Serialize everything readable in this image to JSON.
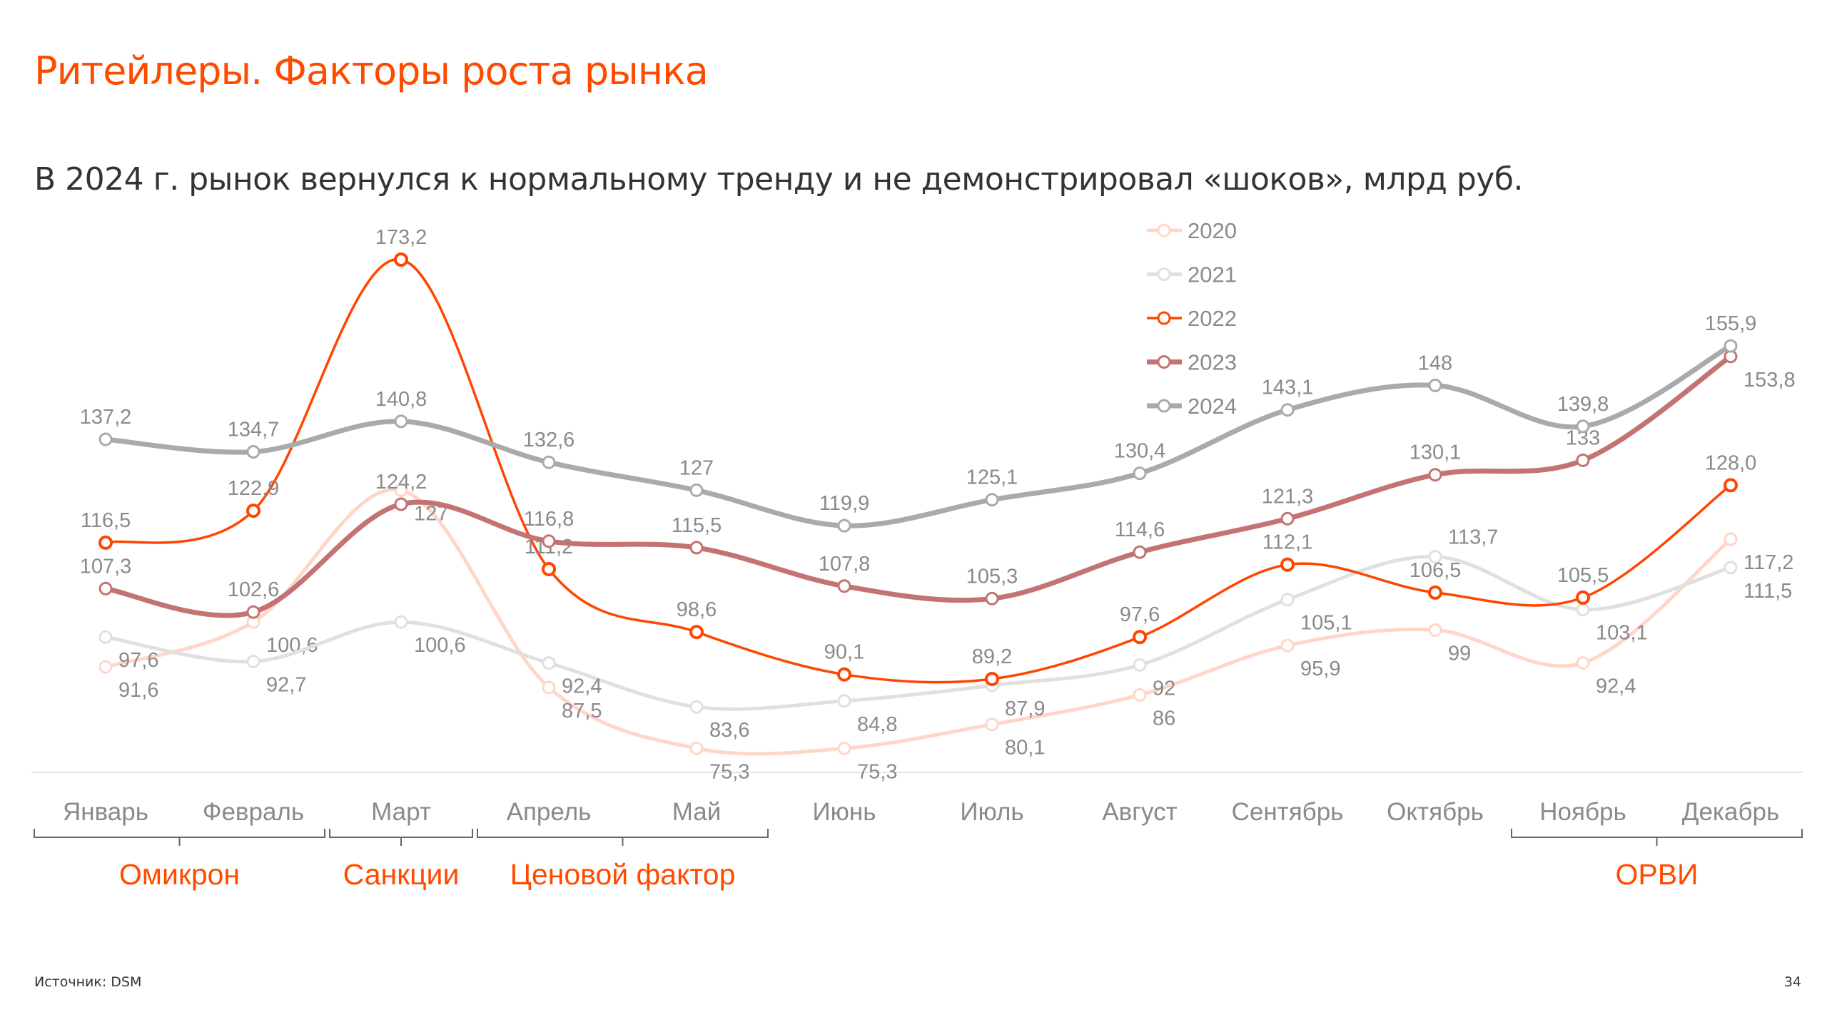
{
  "title": "Ритейлеры. Факторы роста рынка",
  "subtitle": "В 2024 г. рынок вернулся к нормальному тренду и не демонстрировал «шоков», млрд руб.",
  "source": "Источник: DSM",
  "page_number": "34",
  "chart_data": {
    "type": "line",
    "smooth": true,
    "title": "В 2024 г. рынок вернулся к нормальному тренду и не демонстрировал «шоков», млрд руб.",
    "xlabel": "",
    "ylabel": "млрд руб.",
    "ylim": [
      70,
      180
    ],
    "grid": false,
    "legend_position": "top-right",
    "categories": [
      "Январь",
      "Февраль",
      "Март",
      "Апрель",
      "Май",
      "Июнь",
      "Июль",
      "Август",
      "Сентябрь",
      "Октябрь",
      "Ноябрь",
      "Декабрь"
    ],
    "series": [
      {
        "name": "2020",
        "color": "#FFD6C8",
        "values": [
          91.6,
          100.6,
          127,
          87.5,
          75.3,
          75.3,
          80.1,
          86,
          95.9,
          99,
          92.4,
          117.2
        ],
        "labels": [
          "91,6",
          "100,6",
          "127",
          "87,5",
          "75,3",
          "75,3",
          "80,1",
          "86",
          "95,9",
          "99",
          "92,4",
          "117,2"
        ]
      },
      {
        "name": "2021",
        "color": "#E0E0E0",
        "values": [
          97.6,
          92.7,
          100.6,
          92.4,
          83.6,
          84.8,
          87.9,
          92,
          105.1,
          113.7,
          103.1,
          111.5
        ],
        "labels": [
          "97,6",
          "92,7",
          "100,6",
          "92,4",
          "83,6",
          "84,8",
          "87,9",
          "92",
          "105,1",
          "113,7",
          "103,1",
          "111,5"
        ]
      },
      {
        "name": "2022",
        "color": "#FF4600",
        "values": [
          116.5,
          122.9,
          173.2,
          111.2,
          98.6,
          90.1,
          89.2,
          97.6,
          112.1,
          106.5,
          105.5,
          128.0
        ],
        "labels": [
          "116,5",
          "122,9",
          "173,2",
          "111,2",
          "98,6",
          "90,1",
          "89,2",
          "97,6",
          "112,1",
          "106,5",
          "105,5",
          "128,0"
        ]
      },
      {
        "name": "2023",
        "color": "#C37373",
        "values": [
          107.3,
          102.6,
          124.2,
          116.8,
          115.5,
          107.8,
          105.3,
          114.6,
          121.3,
          130.1,
          133,
          153.8
        ],
        "labels": [
          "107,3",
          "102,6",
          "124,2",
          "116,8",
          "115,5",
          "107,8",
          "105,3",
          "114,6",
          "121,3",
          "130,1",
          "133",
          "153,8"
        ]
      },
      {
        "name": "2024",
        "color": "#AAAAAA",
        "values": [
          137.2,
          134.7,
          140.8,
          132.6,
          127,
          119.9,
          125.1,
          130.4,
          143.1,
          148,
          139.8,
          155.9
        ],
        "labels": [
          "137,2",
          "134,7",
          "140,8",
          "132,6",
          "127",
          "119,9",
          "125,1",
          "130,4",
          "143,1",
          "148",
          "139,8",
          "155,9"
        ]
      }
    ],
    "annotations": [
      {
        "label": "Омикрон",
        "from": "Январь",
        "to": "Февраль"
      },
      {
        "label": "Санкции",
        "from": "Март",
        "to": "Март"
      },
      {
        "label": "Ценовой фактор",
        "from": "Апрель",
        "to": "Май"
      },
      {
        "label": "ОРВИ",
        "from": "Ноябрь",
        "to": "Декабрь"
      }
    ],
    "annotation_color": "#FF4B00"
  }
}
